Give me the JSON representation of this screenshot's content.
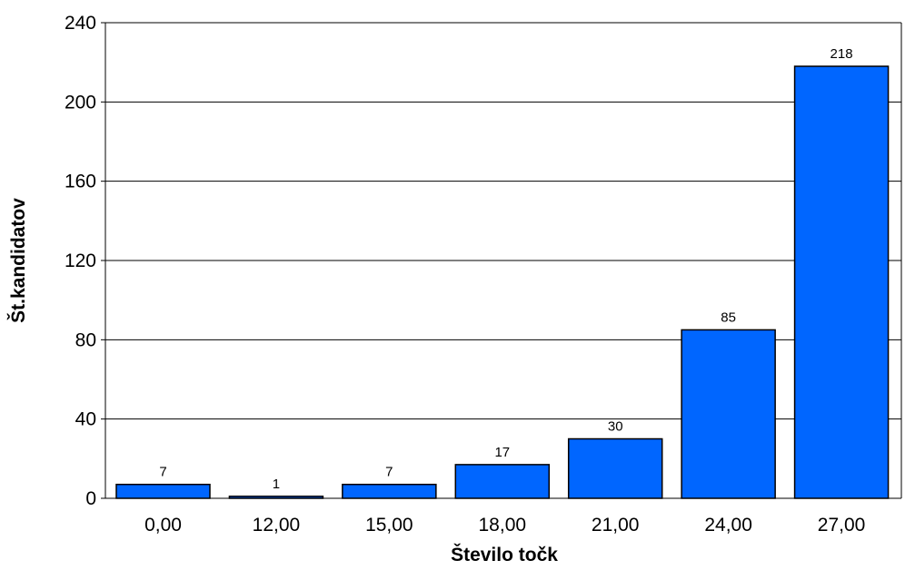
{
  "chart_data": {
    "type": "bar",
    "categories": [
      "0,00",
      "12,00",
      "15,00",
      "18,00",
      "21,00",
      "24,00",
      "27,00"
    ],
    "values": [
      7,
      1,
      7,
      17,
      30,
      85,
      218
    ],
    "value_labels": [
      "7",
      "1",
      "7",
      "17",
      "30",
      "85",
      "218"
    ],
    "yticks": [
      "0",
      "40",
      "80",
      "120",
      "160",
      "200",
      "240"
    ],
    "ylim": [
      0,
      240
    ],
    "xlabel": "Število točk",
    "ylabel": "Št.kandidatov",
    "grid": "horizontal",
    "colors": {
      "bar": "#0066ff",
      "bar_stroke": "#000000",
      "grid": "#000000"
    }
  }
}
